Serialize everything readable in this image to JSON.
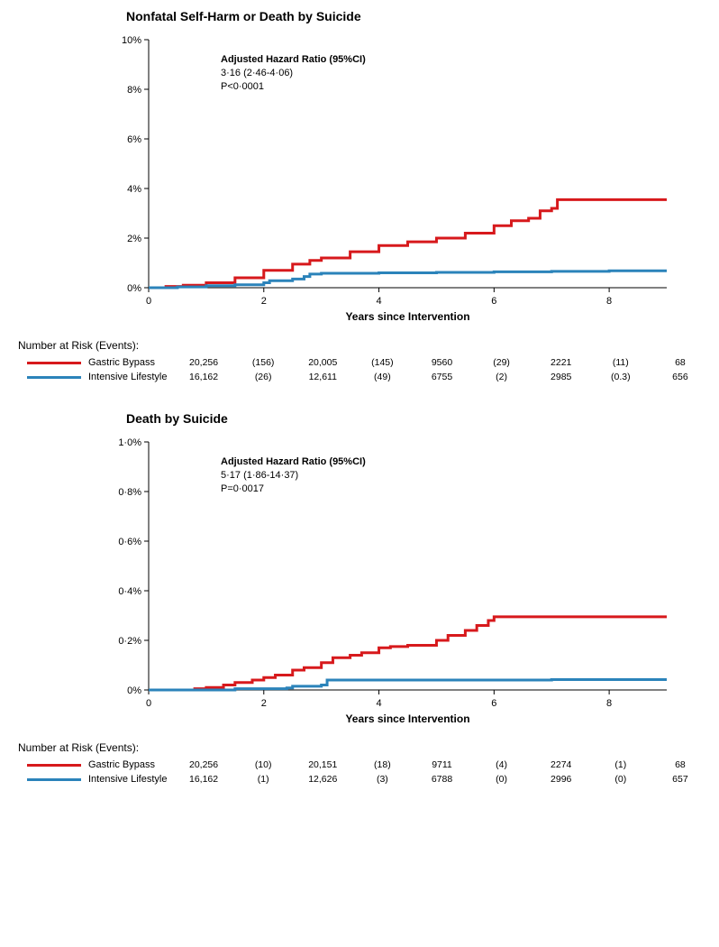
{
  "colors": {
    "red": "#d7191c",
    "blue": "#2b83ba",
    "axis": "#000000",
    "bg": "#ffffff"
  },
  "panels": [
    {
      "title": "Nonfatal Self-Harm or Death by Suicide",
      "annot_title": "Adjusted Hazard Ratio (95%CI)",
      "annot_line1": "3·16 (2·46-4·06)",
      "annot_line2": "P<0·0001",
      "x_label": "Years since Intervention",
      "x_ticks": [
        0,
        2,
        4,
        6,
        8
      ],
      "x_max": 9,
      "y_ticks": [
        "0%",
        "2%",
        "4%",
        "6%",
        "8%",
        "10%"
      ],
      "y_max": 10,
      "series": [
        {
          "name": "Gastric Bypass",
          "color": "#d7191c",
          "points": [
            [
              0,
              0
            ],
            [
              0.3,
              0.05
            ],
            [
              0.6,
              0.1
            ],
            [
              1,
              0.2
            ],
            [
              1.5,
              0.4
            ],
            [
              2,
              0.7
            ],
            [
              2.5,
              0.95
            ],
            [
              2.8,
              1.1
            ],
            [
              3,
              1.2
            ],
            [
              3.5,
              1.45
            ],
            [
              4,
              1.7
            ],
            [
              4.5,
              1.85
            ],
            [
              5,
              2.0
            ],
            [
              5.5,
              2.2
            ],
            [
              6,
              2.5
            ],
            [
              6.3,
              2.7
            ],
            [
              6.6,
              2.8
            ],
            [
              6.8,
              3.1
            ],
            [
              7,
              3.2
            ],
            [
              7.1,
              3.55
            ],
            [
              9,
              3.55
            ]
          ]
        },
        {
          "name": "Intensive Lifestyle",
          "color": "#2b83ba",
          "points": [
            [
              0,
              0
            ],
            [
              0.5,
              0.03
            ],
            [
              1,
              0.08
            ],
            [
              1.5,
              0.12
            ],
            [
              2,
              0.2
            ],
            [
              2.1,
              0.28
            ],
            [
              2.5,
              0.35
            ],
            [
              2.7,
              0.45
            ],
            [
              2.8,
              0.55
            ],
            [
              3,
              0.58
            ],
            [
              4,
              0.6
            ],
            [
              5,
              0.62
            ],
            [
              6,
              0.64
            ],
            [
              7,
              0.66
            ],
            [
              8,
              0.68
            ],
            [
              9,
              0.68
            ]
          ]
        }
      ],
      "risk_title": "Number at Risk (Events):",
      "risk_rows": [
        {
          "label": "Gastric Bypass",
          "color": "#d7191c",
          "cells": [
            "20,256",
            "(156)",
            "20,005",
            "(145)",
            "9560",
            "(29)",
            "2221",
            "(11)",
            "68"
          ]
        },
        {
          "label": "Intensive Lifestyle",
          "color": "#2b83ba",
          "cells": [
            "16,162",
            "(26)",
            "12,611",
            "(49)",
            "6755",
            "(2)",
            "2985",
            "(0.3)",
            "656"
          ]
        }
      ]
    },
    {
      "title": "Death by Suicide",
      "annot_title": "Adjusted Hazard Ratio (95%CI)",
      "annot_line1": "5·17 (1·86-14·37)",
      "annot_line2": "P=0·0017",
      "x_label": "Years since Intervention",
      "x_ticks": [
        0,
        2,
        4,
        6,
        8
      ],
      "x_max": 9,
      "y_ticks": [
        "0%",
        "0·2%",
        "0·4%",
        "0·6%",
        "0·8%",
        "1·0%"
      ],
      "y_max": 1.0,
      "series": [
        {
          "name": "Gastric Bypass",
          "color": "#d7191c",
          "points": [
            [
              0,
              0
            ],
            [
              0.8,
              0.005
            ],
            [
              1.0,
              0.01
            ],
            [
              1.3,
              0.02
            ],
            [
              1.5,
              0.03
            ],
            [
              1.8,
              0.04
            ],
            [
              2.0,
              0.05
            ],
            [
              2.2,
              0.06
            ],
            [
              2.5,
              0.08
            ],
            [
              2.7,
              0.09
            ],
            [
              3.0,
              0.11
            ],
            [
              3.2,
              0.13
            ],
            [
              3.5,
              0.14
            ],
            [
              3.7,
              0.15
            ],
            [
              4.0,
              0.17
            ],
            [
              4.2,
              0.175
            ],
            [
              4.5,
              0.18
            ],
            [
              5.0,
              0.2
            ],
            [
              5.2,
              0.22
            ],
            [
              5.5,
              0.24
            ],
            [
              5.7,
              0.26
            ],
            [
              5.9,
              0.28
            ],
            [
              6.0,
              0.295
            ],
            [
              9,
              0.295
            ]
          ]
        },
        {
          "name": "Intensive Lifestyle",
          "color": "#2b83ba",
          "points": [
            [
              0,
              0
            ],
            [
              1.5,
              0.005
            ],
            [
              2.4,
              0.008
            ],
            [
              2.5,
              0.015
            ],
            [
              3.0,
              0.02
            ],
            [
              3.1,
              0.04
            ],
            [
              5,
              0.04
            ],
            [
              7,
              0.042
            ],
            [
              9,
              0.042
            ]
          ]
        }
      ],
      "risk_title": "Number at Risk (Events):",
      "risk_rows": [
        {
          "label": "Gastric Bypass",
          "color": "#d7191c",
          "cells": [
            "20,256",
            "(10)",
            "20,151",
            "(18)",
            "9711",
            "(4)",
            "2274",
            "(1)",
            "68"
          ]
        },
        {
          "label": "Intensive Lifestyle",
          "color": "#2b83ba",
          "cells": [
            "16,162",
            "(1)",
            "12,626",
            "(3)",
            "6788",
            "(0)",
            "2996",
            "(0)",
            "657"
          ]
        }
      ]
    }
  ]
}
